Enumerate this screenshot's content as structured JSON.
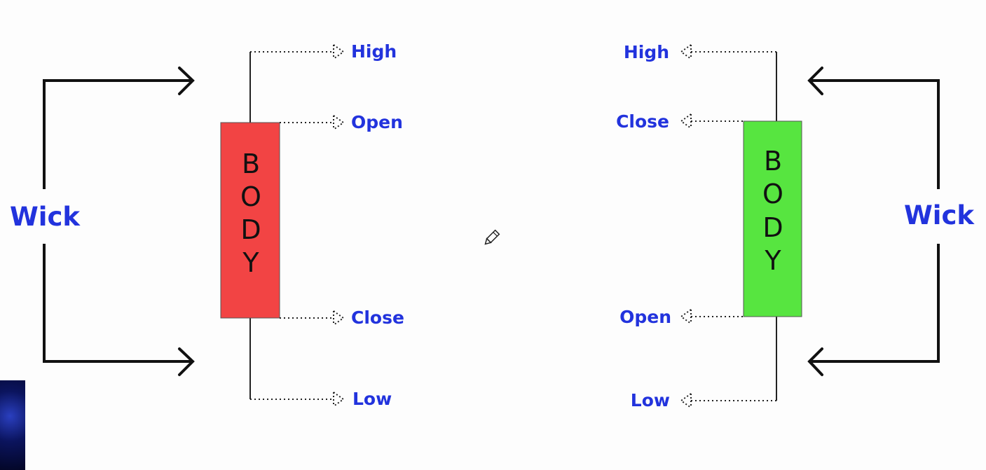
{
  "diagram": {
    "bearish": {
      "body_letters": [
        "B",
        "O",
        "D",
        "Y"
      ],
      "body_color": "#f24444",
      "wick_label": "Wick",
      "labels": {
        "high": "High",
        "open": "Open",
        "close": "Close",
        "low": "Low"
      }
    },
    "bullish": {
      "body_letters": [
        "B",
        "O",
        "D",
        "Y"
      ],
      "body_color": "#57e540",
      "wick_label": "Wick",
      "labels": {
        "high": "High",
        "close": "Close",
        "open": "Open",
        "low": "Low"
      }
    },
    "label_color": "#2233dd",
    "icons": {
      "cursor": "pencil-cursor-icon"
    }
  }
}
